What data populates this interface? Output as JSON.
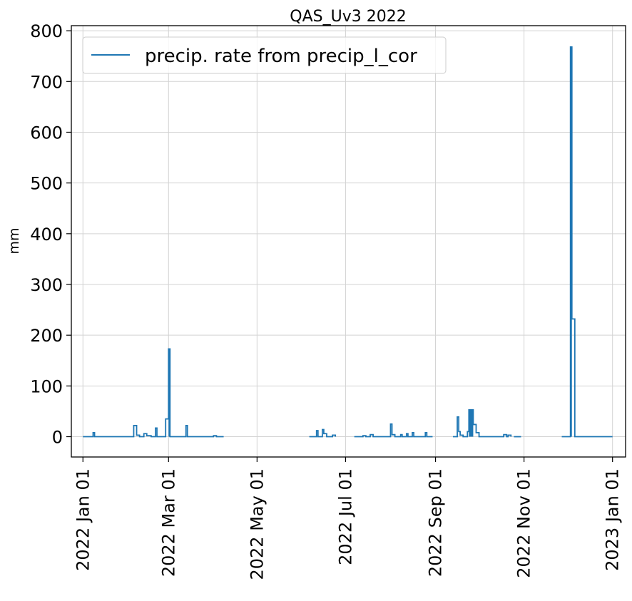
{
  "chart_data": {
    "type": "line",
    "title": "QAS_Uv3 2022",
    "xlabel": "",
    "ylabel": "mm",
    "x_axis": "date",
    "xlim": [
      "2021-12-24",
      "2023-01-10"
    ],
    "ylim": [
      -40,
      810
    ],
    "y_ticks": [
      0,
      100,
      200,
      300,
      400,
      500,
      600,
      700,
      800
    ],
    "x_ticks": [
      {
        "date": "2022-01-01",
        "label": "2022 Jan 01"
      },
      {
        "date": "2022-03-01",
        "label": "2022 Mar 01"
      },
      {
        "date": "2022-05-01",
        "label": "2022 May 01"
      },
      {
        "date": "2022-07-01",
        "label": "2022 Jul 01"
      },
      {
        "date": "2022-09-01",
        "label": "2022 Sep 01"
      },
      {
        "date": "2022-11-01",
        "label": "2022 Nov 01"
      },
      {
        "date": "2023-01-01",
        "label": "2023 Jan 01"
      }
    ],
    "grid": true,
    "legend": {
      "placement": "top-left"
    },
    "colors": {
      "series": "#1f77b4"
    },
    "series": [
      {
        "name": "precip. rate from precip_l_cor",
        "segments": [
          [
            [
              "2022-01-01",
              0
            ],
            [
              "2022-01-08",
              0
            ],
            [
              "2022-01-08",
              8
            ],
            [
              "2022-01-09",
              8
            ],
            [
              "2022-01-09",
              0
            ],
            [
              "2022-02-05",
              0
            ],
            [
              "2022-02-05",
              22
            ],
            [
              "2022-02-07",
              22
            ],
            [
              "2022-02-07",
              3
            ],
            [
              "2022-02-09",
              3
            ],
            [
              "2022-02-09",
              0
            ],
            [
              "2022-02-12",
              0
            ],
            [
              "2022-02-12",
              6
            ],
            [
              "2022-02-14",
              6
            ],
            [
              "2022-02-14",
              2
            ],
            [
              "2022-02-17",
              2
            ],
            [
              "2022-02-17",
              0
            ],
            [
              "2022-02-20",
              0
            ],
            [
              "2022-02-20",
              17
            ],
            [
              "2022-02-21",
              17
            ],
            [
              "2022-02-21",
              0
            ],
            [
              "2022-02-27",
              0
            ],
            [
              "2022-02-27",
              35
            ],
            [
              "2022-03-01",
              35
            ],
            [
              "2022-03-01",
              173
            ],
            [
              "2022-03-02",
              173
            ],
            [
              "2022-03-02",
              0
            ],
            [
              "2022-03-13",
              0
            ],
            [
              "2022-03-13",
              22
            ],
            [
              "2022-03-14",
              22
            ],
            [
              "2022-03-14",
              0
            ],
            [
              "2022-04-01",
              0
            ],
            [
              "2022-04-01",
              2
            ],
            [
              "2022-04-03",
              2
            ],
            [
              "2022-04-03",
              0
            ],
            [
              "2022-04-08",
              0
            ]
          ],
          [
            [
              "2022-06-06",
              0
            ],
            [
              "2022-06-11",
              0
            ],
            [
              "2022-06-11",
              12
            ],
            [
              "2022-06-12",
              12
            ],
            [
              "2022-06-12",
              0
            ],
            [
              "2022-06-15",
              0
            ],
            [
              "2022-06-15",
              14
            ],
            [
              "2022-06-16",
              14
            ],
            [
              "2022-06-16",
              6
            ],
            [
              "2022-06-18",
              6
            ],
            [
              "2022-06-18",
              0
            ],
            [
              "2022-06-22",
              0
            ],
            [
              "2022-06-22",
              3
            ],
            [
              "2022-06-24",
              3
            ],
            [
              "2022-06-24",
              0
            ]
          ],
          [
            [
              "2022-07-07",
              0
            ],
            [
              "2022-07-13",
              0
            ],
            [
              "2022-07-13",
              2
            ],
            [
              "2022-07-15",
              2
            ],
            [
              "2022-07-15",
              0
            ],
            [
              "2022-07-18",
              0
            ],
            [
              "2022-07-18",
              4
            ],
            [
              "2022-07-20",
              4
            ],
            [
              "2022-07-20",
              0
            ],
            [
              "2022-08-01",
              0
            ],
            [
              "2022-08-01",
              25
            ],
            [
              "2022-08-02",
              25
            ],
            [
              "2022-08-02",
              4
            ],
            [
              "2022-08-04",
              4
            ],
            [
              "2022-08-04",
              0
            ],
            [
              "2022-08-08",
              0
            ],
            [
              "2022-08-08",
              4
            ],
            [
              "2022-08-09",
              4
            ],
            [
              "2022-08-09",
              0
            ],
            [
              "2022-08-12",
              0
            ],
            [
              "2022-08-12",
              6
            ],
            [
              "2022-08-13",
              6
            ],
            [
              "2022-08-13",
              0
            ],
            [
              "2022-08-16",
              0
            ],
            [
              "2022-08-16",
              8
            ],
            [
              "2022-08-17",
              8
            ],
            [
              "2022-08-17",
              0
            ],
            [
              "2022-08-25",
              0
            ],
            [
              "2022-08-25",
              8
            ],
            [
              "2022-08-26",
              8
            ],
            [
              "2022-08-26",
              0
            ],
            [
              "2022-08-30",
              0
            ]
          ],
          [
            [
              "2022-09-13",
              0
            ],
            [
              "2022-09-16",
              0
            ],
            [
              "2022-09-16",
              39
            ],
            [
              "2022-09-17",
              39
            ],
            [
              "2022-09-17",
              10
            ],
            [
              "2022-09-18",
              10
            ],
            [
              "2022-09-18",
              3
            ],
            [
              "2022-09-20",
              3
            ],
            [
              "2022-09-20",
              0
            ],
            [
              "2022-09-23",
              0
            ],
            [
              "2022-09-23",
              10
            ],
            [
              "2022-09-24",
              10
            ],
            [
              "2022-09-24",
              53
            ],
            [
              "2022-09-27",
              53
            ],
            [
              "2022-09-27",
              24
            ],
            [
              "2022-09-29",
              24
            ],
            [
              "2022-09-29",
              8
            ],
            [
              "2022-10-01",
              8
            ],
            [
              "2022-10-01",
              0
            ],
            [
              "2022-10-18",
              0
            ],
            [
              "2022-10-18",
              4
            ],
            [
              "2022-10-20",
              4
            ],
            [
              "2022-10-20",
              0
            ],
            [
              "2022-10-21",
              0
            ],
            [
              "2022-10-21",
              3
            ],
            [
              "2022-10-23",
              3
            ],
            [
              "2022-10-23",
              0
            ]
          ],
          [
            [
              "2022-10-25",
              0
            ],
            [
              "2022-10-30",
              0
            ]
          ],
          [
            [
              "2022-11-27",
              0
            ],
            [
              "2022-12-03",
              0
            ],
            [
              "2022-12-03",
              768
            ],
            [
              "2022-12-04",
              768
            ],
            [
              "2022-12-04",
              232
            ],
            [
              "2022-12-06",
              232
            ],
            [
              "2022-12-06",
              0
            ],
            [
              "2023-01-01",
              0
            ]
          ]
        ],
        "spikes": [
          {
            "x": [
              "2022-03-01",
              "2022-03-02"
            ],
            "y": 173
          },
          {
            "x": [
              "2022-09-24",
              "2022-09-27"
            ],
            "y": 53
          },
          {
            "x": [
              "2022-12-03",
              "2022-12-04"
            ],
            "y": 768
          }
        ]
      }
    ]
  }
}
